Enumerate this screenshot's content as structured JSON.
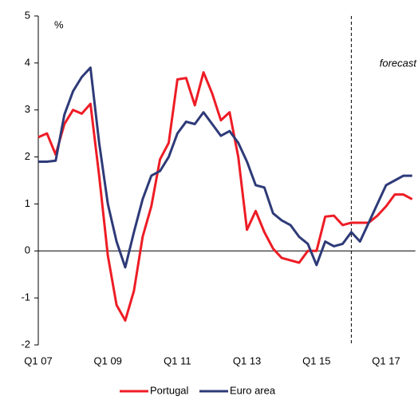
{
  "chart_data": {
    "type": "line",
    "y_unit_label": "%",
    "annotation": "forecast",
    "forecast_start": 36,
    "categories": [
      "Q1 07",
      null,
      null,
      null,
      null,
      null,
      null,
      null,
      "Q1 09",
      null,
      null,
      null,
      null,
      null,
      null,
      null,
      "Q1 11",
      null,
      null,
      null,
      null,
      null,
      null,
      null,
      "Q1 13",
      null,
      null,
      null,
      null,
      null,
      null,
      null,
      "Q1 15",
      null,
      null,
      null,
      null,
      null,
      null,
      null,
      "Q1 17",
      null,
      null,
      null
    ],
    "series": [
      {
        "name": "Portugal",
        "color": "#ee1c25",
        "values": [
          2.42,
          2.5,
          2.05,
          2.7,
          3.0,
          2.92,
          3.13,
          1.6,
          -0.1,
          -1.15,
          -1.48,
          -0.85,
          0.3,
          0.95,
          1.95,
          2.3,
          3.65,
          3.68,
          3.1,
          3.8,
          3.35,
          2.78,
          2.95,
          2.0,
          0.45,
          0.85,
          0.4,
          0.05,
          -0.15,
          -0.2,
          -0.25,
          0.0,
          0.0,
          0.73,
          0.75,
          0.55,
          0.6,
          0.6,
          0.6,
          0.75,
          0.95,
          1.2,
          1.2,
          1.1
        ]
      },
      {
        "name": "Euro area",
        "color": "#2e3a78",
        "values": [
          1.9,
          1.9,
          1.92,
          2.9,
          3.4,
          3.7,
          3.9,
          2.3,
          1.0,
          0.2,
          -0.35,
          0.4,
          1.1,
          1.6,
          1.7,
          2.0,
          2.5,
          2.75,
          2.7,
          2.95,
          2.7,
          2.45,
          2.55,
          2.3,
          1.9,
          1.4,
          1.35,
          0.8,
          0.65,
          0.55,
          0.3,
          0.15,
          -0.3,
          0.2,
          0.1,
          0.15,
          0.4,
          0.2,
          0.6,
          1.0,
          1.4,
          1.5,
          1.6,
          1.6
        ]
      }
    ],
    "ylim": [
      -2,
      5
    ],
    "yticks": [
      -2,
      -1,
      0,
      1,
      2,
      3,
      4,
      5
    ],
    "legend": "bottom"
  }
}
